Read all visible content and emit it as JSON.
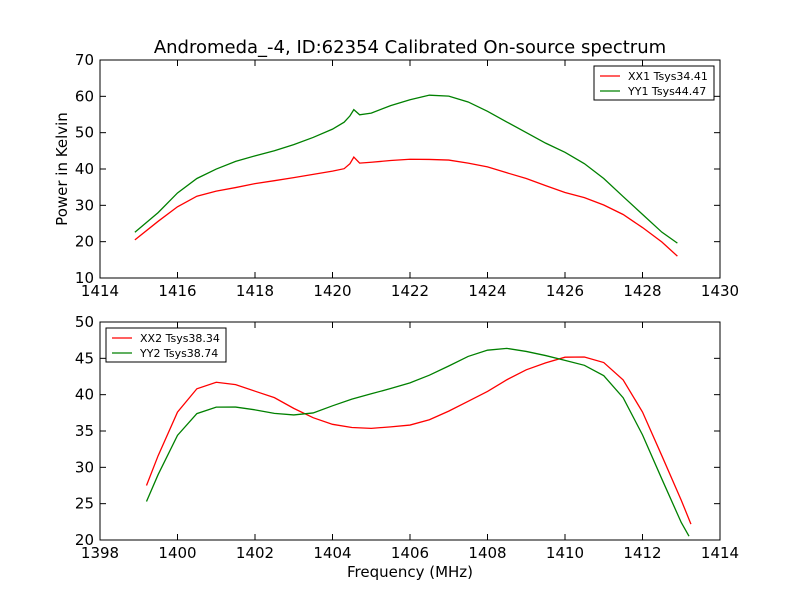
{
  "figure": {
    "title": "Andromeda_-4, ID:62354 Calibrated On-source spectrum",
    "xlabel": "Frequency (MHz)"
  },
  "chart_data": [
    {
      "type": "line",
      "ylabel": "Power in Kelvin",
      "xlim": [
        1414,
        1430
      ],
      "ylim": [
        10,
        70
      ],
      "xticks": [
        1414,
        1416,
        1418,
        1420,
        1422,
        1424,
        1426,
        1428,
        1430
      ],
      "yticks": [
        10,
        20,
        30,
        40,
        50,
        60,
        70
      ],
      "grid": false,
      "legend": "top-right",
      "series": [
        {
          "name": "XX1 Tsys34.41",
          "color": "#ff0000",
          "x": [
            1414.9,
            1415.5,
            1416.0,
            1416.5,
            1417.0,
            1417.5,
            1418.0,
            1418.5,
            1419.0,
            1419.5,
            1420.0,
            1420.3,
            1420.45,
            1420.55,
            1420.7,
            1421.0,
            1421.5,
            1422.0,
            1422.5,
            1423.0,
            1423.5,
            1424.0,
            1424.5,
            1425.0,
            1425.5,
            1426.0,
            1426.5,
            1427.0,
            1427.5,
            1428.0,
            1428.5,
            1428.9
          ],
          "y": [
            20.5,
            25.5,
            29.5,
            32.5,
            34.0,
            35.0,
            36.0,
            36.7,
            37.5,
            38.5,
            39.5,
            40.2,
            41.5,
            43.2,
            41.5,
            41.8,
            42.4,
            42.8,
            42.7,
            42.4,
            41.5,
            40.5,
            39.0,
            37.5,
            35.5,
            33.5,
            32.0,
            30.0,
            27.5,
            24.0,
            20.0,
            16.0
          ]
        },
        {
          "name": "YY1 Tsys44.47",
          "color": "#008000",
          "x": [
            1414.9,
            1415.5,
            1416.0,
            1416.5,
            1417.0,
            1417.5,
            1418.0,
            1418.5,
            1419.0,
            1419.5,
            1420.0,
            1420.3,
            1420.45,
            1420.55,
            1420.7,
            1421.0,
            1421.5,
            1422.0,
            1422.5,
            1423.0,
            1423.5,
            1424.0,
            1424.5,
            1425.0,
            1425.5,
            1426.0,
            1426.5,
            1427.0,
            1427.5,
            1428.0,
            1428.5,
            1428.9
          ],
          "y": [
            22.5,
            28.0,
            33.5,
            37.5,
            40.0,
            42.0,
            43.5,
            45.0,
            46.8,
            48.8,
            51.0,
            52.8,
            54.5,
            56.3,
            55.0,
            55.5,
            57.5,
            59.0,
            60.2,
            60.0,
            58.5,
            56.0,
            53.0,
            50.0,
            47.0,
            44.5,
            41.5,
            37.5,
            32.5,
            27.5,
            22.5,
            19.5
          ]
        }
      ]
    },
    {
      "type": "line",
      "xlim": [
        1398,
        1414
      ],
      "ylim": [
        20,
        50
      ],
      "xticks": [
        1398,
        1400,
        1402,
        1404,
        1406,
        1408,
        1410,
        1412,
        1414
      ],
      "yticks": [
        20,
        25,
        30,
        35,
        40,
        45,
        50
      ],
      "grid": false,
      "legend": "top-left",
      "series": [
        {
          "name": "XX2 Tsys38.34",
          "color": "#ff0000",
          "x": [
            1399.2,
            1399.5,
            1400.0,
            1400.5,
            1401.0,
            1401.5,
            1402.0,
            1402.5,
            1403.0,
            1403.5,
            1404.0,
            1404.5,
            1405.0,
            1405.5,
            1406.0,
            1406.5,
            1407.0,
            1407.5,
            1408.0,
            1408.5,
            1409.0,
            1409.5,
            1410.0,
            1410.5,
            1411.0,
            1411.5,
            1412.0,
            1412.5,
            1413.0,
            1413.25
          ],
          "y": [
            27.5,
            31.5,
            37.5,
            40.8,
            41.8,
            41.5,
            40.5,
            39.5,
            38.0,
            36.8,
            36.0,
            35.6,
            35.4,
            35.5,
            35.7,
            36.5,
            37.8,
            39.2,
            40.5,
            42.0,
            43.3,
            44.3,
            45.2,
            45.3,
            44.5,
            42.0,
            37.5,
            31.5,
            25.5,
            22.3
          ]
        },
        {
          "name": "YY2 Tsys38.74",
          "color": "#008000",
          "x": [
            1399.2,
            1399.5,
            1400.0,
            1400.5,
            1401.0,
            1401.5,
            1402.0,
            1402.5,
            1403.0,
            1403.5,
            1404.0,
            1404.5,
            1405.0,
            1405.5,
            1406.0,
            1406.5,
            1407.0,
            1407.5,
            1408.0,
            1408.5,
            1409.0,
            1409.5,
            1410.0,
            1410.5,
            1411.0,
            1411.5,
            1412.0,
            1412.5,
            1413.0,
            1413.2
          ],
          "y": [
            25.2,
            29.0,
            34.5,
            37.5,
            38.3,
            38.2,
            37.8,
            37.4,
            37.3,
            37.6,
            38.5,
            39.3,
            40.0,
            40.8,
            41.7,
            42.8,
            44.0,
            45.2,
            46.0,
            46.3,
            46.0,
            45.5,
            44.8,
            44.0,
            42.5,
            39.5,
            34.5,
            28.5,
            22.5,
            20.5
          ]
        }
      ]
    }
  ]
}
